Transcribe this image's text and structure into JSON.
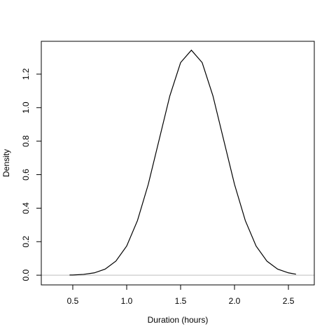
{
  "chart_data": {
    "type": "line",
    "xlabel": "Duration (hours)",
    "ylabel": "Density",
    "x": [
      0.47,
      0.5,
      0.6,
      0.7,
      0.8,
      0.9,
      1.0,
      1.1,
      1.2,
      1.3,
      1.4,
      1.5,
      1.6,
      1.7,
      1.8,
      1.9,
      2.0,
      2.1,
      2.2,
      2.3,
      2.4,
      2.5,
      2.57
    ],
    "values": [
      0.001,
      0.001,
      0.005,
      0.014,
      0.036,
      0.084,
      0.174,
      0.326,
      0.542,
      0.806,
      1.07,
      1.269,
      1.343,
      1.269,
      1.07,
      0.806,
      0.542,
      0.326,
      0.174,
      0.084,
      0.036,
      0.014,
      0.006
    ],
    "color": "#000000",
    "xlim": [
      0.208,
      2.74
    ],
    "ylim": [
      -0.058,
      1.396
    ],
    "xticks": [
      0.5,
      {
        "value": 1,
        "label": "1.0"
      },
      1.5,
      {
        "value": 2,
        "label": "2.0"
      },
      2.5
    ],
    "yticks": [
      {
        "value": 0,
        "label": "0.0"
      },
      0.2,
      0.4,
      0.6,
      0.8,
      {
        "value": 1,
        "label": "1.0"
      },
      1.2
    ],
    "zero_line": true
  }
}
